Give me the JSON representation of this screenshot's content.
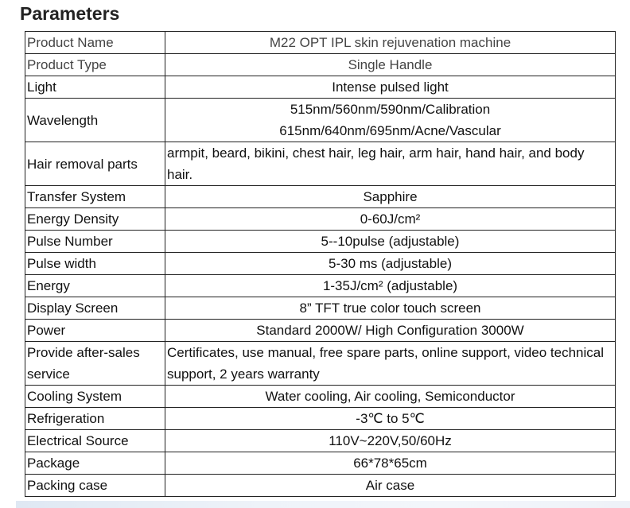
{
  "title": "Parameters",
  "rows": [
    {
      "label": "Product Name",
      "value": "M22 OPT IPL skin rejuvenation machine"
    },
    {
      "label": "Product Type",
      "value": "Single Handle"
    },
    {
      "label": "Light",
      "value": "Intense pulsed light"
    },
    {
      "label": "Wavelength",
      "value": "515nm/560nm/590nm/Calibration",
      "value2": "615nm/640nm/695nm/Acne/Vascular"
    },
    {
      "label": "Hair removal parts",
      "value": "armpit, beard, bikini, chest hair, leg hair, arm hair, hand hair, and body hair."
    },
    {
      "label": "Transfer System",
      "value": "Sapphire"
    },
    {
      "label": "Energy Density",
      "value": "0-60J/cm²"
    },
    {
      "label": "Pulse Number",
      "value": "5--10pulse (adjustable)"
    },
    {
      "label": "Pulse width",
      "value": "5-30 ms (adjustable)"
    },
    {
      "label": "Energy",
      "value": "1-35J/cm² (adjustable)"
    },
    {
      "label": "Display Screen",
      "value": "8” TFT true color touch screen"
    },
    {
      "label": "Power",
      "value": "Standard 2000W/ High Configuration 3000W"
    },
    {
      "label": "Provide after-sales service",
      "value": "Certificates, use manual, free spare parts, online support, video technical support, 2 years warranty"
    },
    {
      "label": "Cooling System",
      "value": "Water cooling, Air cooling, Semiconductor"
    },
    {
      "label": "Refrigeration",
      "value": "-3℃ to 5℃"
    },
    {
      "label": "Electrical Source",
      "value": "110V~220V,50/60Hz"
    },
    {
      "label": "Package",
      "value": "66*78*65cm"
    },
    {
      "label": "Packing case",
      "value": "Air case"
    }
  ]
}
